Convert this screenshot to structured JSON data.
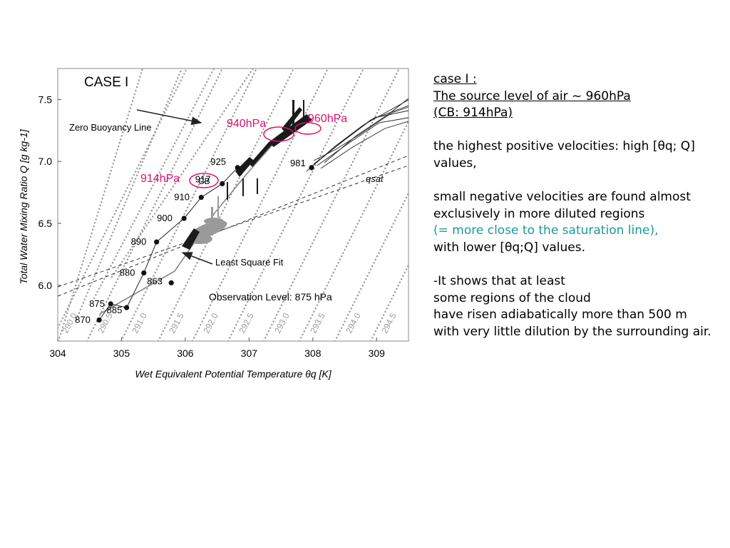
{
  "notes": {
    "heading_lines": [
      "case I :",
      "The source level of air ~ 960hPa",
      "(CB: 914hPa)"
    ],
    "para1": [
      "the highest positive velocities: high [θq; Q]",
      "values,"
    ],
    "para2": [
      "small negative velocities are found almost",
      "exclusively in more diluted regions"
    ],
    "para2_highlight": "(= more close to the saturation line),",
    "para2_end": "with lower [θq;Q] values.",
    "para3": [
      "-It shows that at least",
      "some regions of the cloud",
      "have risen adiabatically more than 500 m",
      "with very little dilution by the surrounding air."
    ],
    "highlight_color": "#1a9a9a"
  },
  "chart_data": {
    "type": "scatter",
    "title": "CASE I",
    "xlabel": "Wet Equivalent Potential Temperature θq [K]",
    "ylabel": "Total Water Mixing Ratio Q [g kg-1]",
    "xlim": [
      304,
      309.5
    ],
    "ylim": [
      5.55,
      7.75
    ],
    "xticks": [
      "304",
      "305",
      "306",
      "307",
      "308",
      "309"
    ],
    "yticks": [
      "6.0",
      "6.5",
      "7.0",
      "7.5"
    ],
    "grid": false,
    "profile_points": [
      {
        "label": "870",
        "x": 304.65,
        "y": 5.72
      },
      {
        "label": "875",
        "x": 304.83,
        "y": 5.85
      },
      {
        "label": "885",
        "x": 305.08,
        "y": 5.82
      },
      {
        "label": "880",
        "x": 305.35,
        "y": 6.1
      },
      {
        "label": "863",
        "x": 305.78,
        "y": 6.02
      },
      {
        "label": "890",
        "x": 305.55,
        "y": 6.35
      },
      {
        "label": "900",
        "x": 305.98,
        "y": 6.54
      },
      {
        "label": "910",
        "x": 306.25,
        "y": 6.71
      },
      {
        "label": "917",
        "x": 306.58,
        "y": 6.82
      },
      {
        "label": "925",
        "x": 306.82,
        "y": 6.95
      },
      {
        "label": "981",
        "x": 307.98,
        "y": 6.95
      }
    ],
    "theta_lines": [
      "290.0",
      "290.5",
      "291.0",
      "291.5",
      "292.0",
      "292.5",
      "293.0",
      "293.5",
      "294.0",
      "294.5"
    ],
    "annotations": {
      "zero_buoyancy": "Zero Buoyancy Line",
      "least_square": "Least Square Fit",
      "obs_level": "Observation Level: 875 hPa",
      "qsat": "qsat",
      "cb": "CB",
      "p940": "940hPa",
      "p960": "960hPa",
      "p914": "914hPa"
    },
    "marker_color": "#e0106e"
  }
}
